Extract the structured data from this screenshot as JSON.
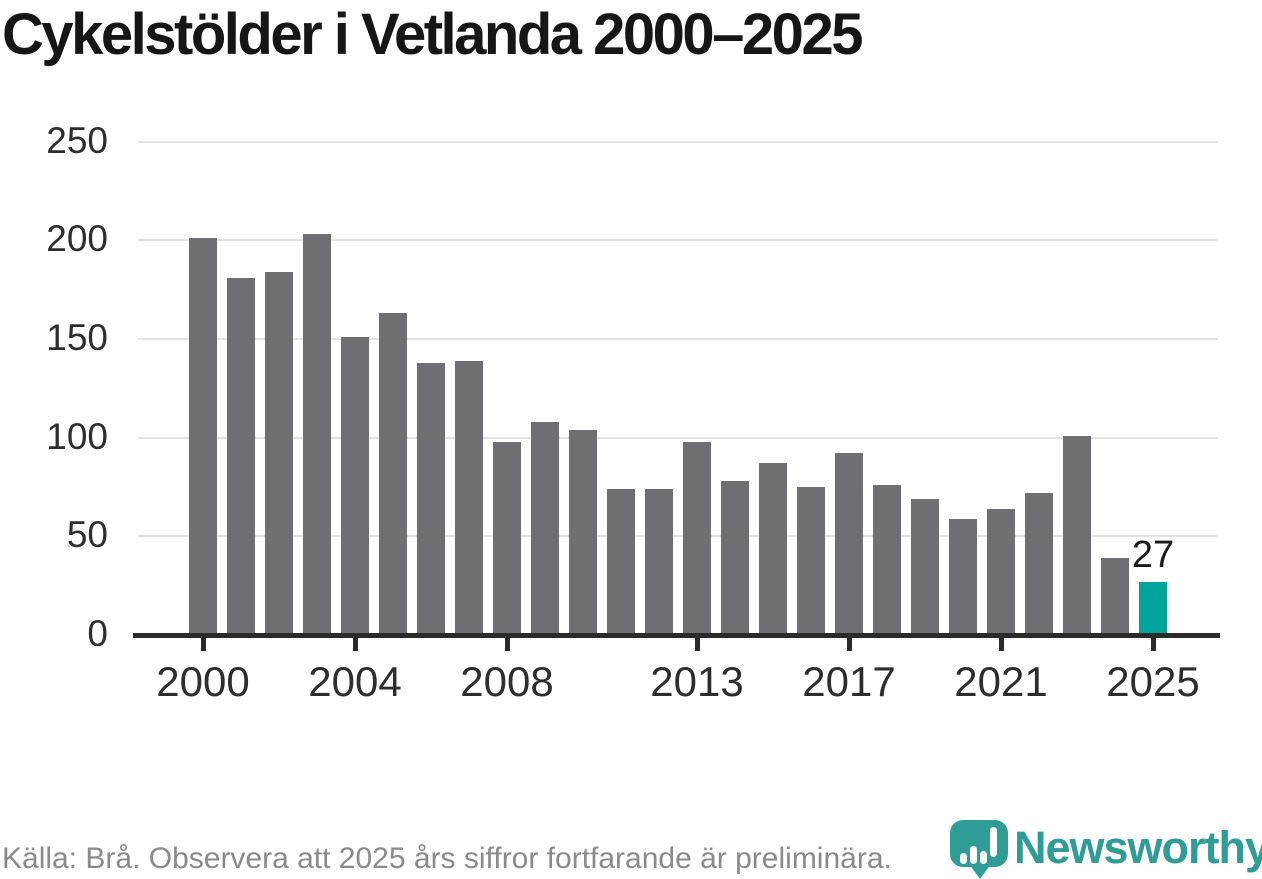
{
  "title": "Cykelstölder i Vetlanda 2000–2025",
  "footer": {
    "source_note": "Källa: Brå. Observera att 2025 års siffror fortfarande är preliminära."
  },
  "logo": {
    "text": "Newsworthy",
    "icon": "newsworthy-bubble-barchart-icon"
  },
  "colors": {
    "bar": "#6e6e73",
    "highlight": "#00a49c",
    "axis": "#2b2b2b",
    "grid": "#e3e3e3",
    "label": "#2d2d2d",
    "title": "#161616",
    "muted": "#8a8a8a",
    "logo": "#2f9c95"
  },
  "chart_data": {
    "type": "bar",
    "title": "Cykelstölder i Vetlanda 2000–2025",
    "x": [
      2000,
      2001,
      2002,
      2003,
      2004,
      2005,
      2006,
      2007,
      2008,
      2009,
      2010,
      2011,
      2012,
      2013,
      2014,
      2015,
      2016,
      2017,
      2018,
      2019,
      2020,
      2021,
      2022,
      2023,
      2024,
      2025
    ],
    "values": [
      201,
      181,
      184,
      203,
      151,
      163,
      138,
      139,
      98,
      108,
      104,
      74,
      74,
      98,
      78,
      87,
      75,
      92,
      76,
      69,
      59,
      64,
      72,
      101,
      39,
      27
    ],
    "highlight_year": 2025,
    "value_label": {
      "year": 2025,
      "text": "27"
    },
    "y_ticks": [
      0,
      50,
      100,
      150,
      200,
      250
    ],
    "x_tick_labels": [
      "2000",
      "2004",
      "2008",
      "2013",
      "2017",
      "2021",
      "2025"
    ],
    "ylim": [
      0,
      250
    ],
    "grid": "horizontal-only",
    "legend": "none",
    "xlabel": "",
    "ylabel": ""
  }
}
